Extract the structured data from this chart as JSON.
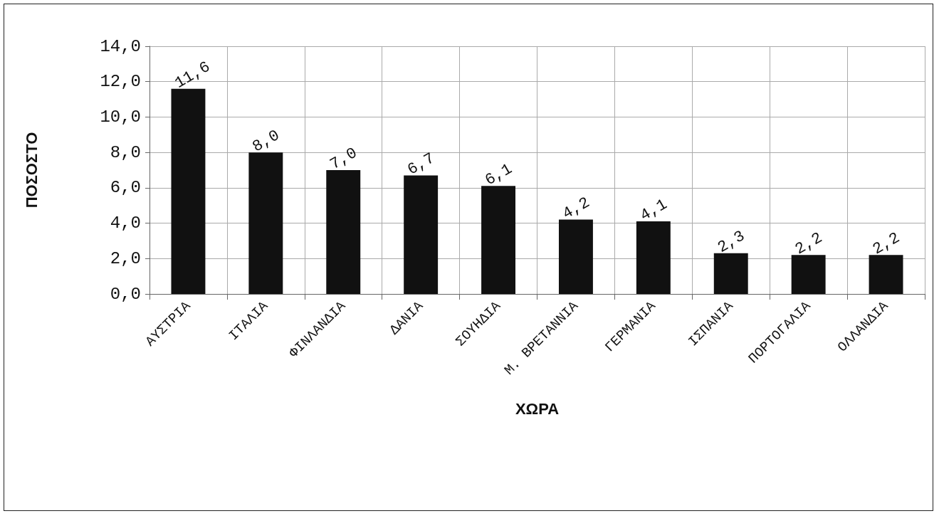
{
  "chart_data": {
    "type": "bar",
    "xlabel": "ΧΩΡΑ",
    "ylabel": "ΠΟΣΟΣΤΟ",
    "categories": [
      "ΑΥΣΤΡΙΑ",
      "ΙΤΑΛΙΑ",
      "ΦΙΝΛΑΝΔΙΑ",
      "ΔΑΝΙΑ",
      "ΣΟΥΗΔΙΑ",
      "Μ. ΒΡΕΤΑΝΝΙΑ",
      "ΓΕΡΜΑΝΙΑ",
      "ΙΣΠΑΝΙΑ",
      "ΠΟΡΤΟΓΑΛΙΑ",
      "ΟΛΛΑΝΔΙΑ"
    ],
    "values": [
      11.6,
      8.0,
      7.0,
      6.7,
      6.1,
      4.2,
      4.1,
      2.3,
      2.2,
      2.2
    ],
    "value_labels": [
      "11,6",
      "8,0",
      "7,0",
      "6,7",
      "6,1",
      "4,2",
      "4,1",
      "2,3",
      "2,2",
      "2,2"
    ],
    "color": "#111111",
    "ylim": [
      0,
      14
    ],
    "yticks": [
      {
        "value": 0,
        "label": "0,0"
      },
      {
        "value": 2,
        "label": "2,0"
      },
      {
        "value": 4,
        "label": "4,0"
      },
      {
        "value": 6,
        "label": "6,0"
      },
      {
        "value": 8,
        "label": "8,0"
      },
      {
        "value": 10,
        "label": "10,0"
      },
      {
        "value": 12,
        "label": "12,0"
      },
      {
        "value": 14,
        "label": "14,0"
      }
    ],
    "grid": true
  }
}
